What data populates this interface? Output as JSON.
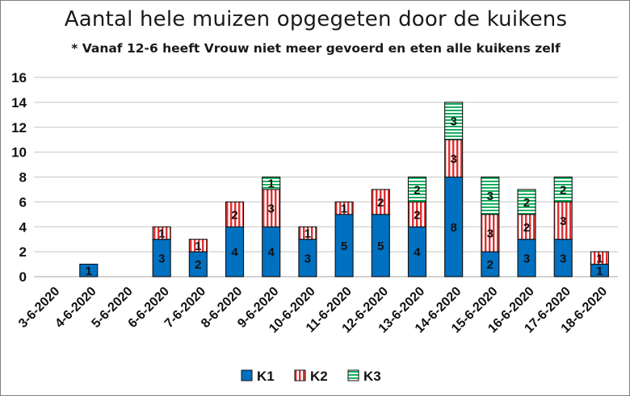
{
  "chart_data": {
    "type": "bar",
    "stacked": true,
    "title": "Aantal hele muizen opgegeten door de kuikens",
    "subtitle": "* Vanaf 12-6 heeft Vrouw niet meer gevoerd en eten alle kuikens zelf",
    "xlabel": "",
    "ylabel": "",
    "ylim": [
      0,
      16
    ],
    "yticks": [
      0,
      2,
      4,
      6,
      8,
      10,
      12,
      14,
      16
    ],
    "grid": true,
    "legend_position": "bottom",
    "categories": [
      "3-6-2020",
      "4-6-2020",
      "5-6-2020",
      "6-6-2020",
      "7-6-2020",
      "8-6-2020",
      "9-6-2020",
      "10-6-2020",
      "11-6-2020",
      "12-6-2020",
      "13-6-2020",
      "14-6-2020",
      "15-6-2020",
      "16-6-2020",
      "17-6-2020",
      "18-6-2020"
    ],
    "series": [
      {
        "name": "K1",
        "color": "#0070c0",
        "pattern": "solid",
        "values": [
          0,
          1,
          0,
          3,
          2,
          4,
          4,
          3,
          5,
          5,
          4,
          8,
          2,
          3,
          3,
          1
        ]
      },
      {
        "name": "K2",
        "color": "#e03030",
        "pattern": "vertical-stripes",
        "values": [
          0,
          0,
          0,
          1,
          1,
          2,
          3,
          1,
          1,
          2,
          2,
          3,
          3,
          2,
          3,
          1
        ]
      },
      {
        "name": "K3",
        "color": "#00a650",
        "pattern": "horizontal-stripes",
        "values": [
          0,
          0,
          0,
          0,
          0,
          0,
          1,
          0,
          0,
          0,
          2,
          3,
          3,
          2,
          2,
          0
        ]
      }
    ]
  }
}
